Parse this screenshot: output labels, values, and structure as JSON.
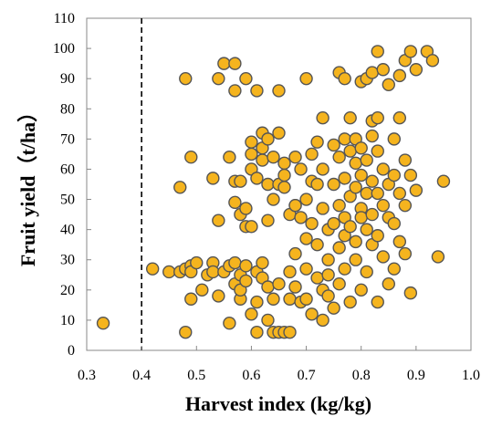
{
  "chart_data": {
    "type": "scatter",
    "xlabel": "Harvest index (kg/kg)",
    "ylabel": "Fruit yield（t/ha）",
    "xlim": [
      0.3,
      1.0
    ],
    "ylim": [
      0,
      110
    ],
    "xticks": [
      "0.3",
      "0.4",
      "0.5",
      "0.6",
      "0.7",
      "0.8",
      "0.9",
      "1.0"
    ],
    "yticks": [
      "0",
      "10",
      "20",
      "30",
      "40",
      "50",
      "60",
      "70",
      "80",
      "90",
      "100",
      "110"
    ],
    "reference_line": {
      "x": 0.4,
      "style": "dashed"
    },
    "grid": false,
    "legend": "none",
    "marker": {
      "fill": "#F5B41E",
      "stroke": "#555555"
    },
    "points": [
      [
        0.33,
        9
      ],
      [
        0.42,
        27
      ],
      [
        0.45,
        26
      ],
      [
        0.47,
        26
      ],
      [
        0.47,
        54
      ],
      [
        0.48,
        6
      ],
      [
        0.48,
        90
      ],
      [
        0.48,
        27
      ],
      [
        0.49,
        28
      ],
      [
        0.49,
        26
      ],
      [
        0.49,
        17
      ],
      [
        0.49,
        64
      ],
      [
        0.5,
        29
      ],
      [
        0.51,
        20
      ],
      [
        0.52,
        25
      ],
      [
        0.53,
        29
      ],
      [
        0.53,
        26
      ],
      [
        0.53,
        57
      ],
      [
        0.54,
        90
      ],
      [
        0.54,
        18
      ],
      [
        0.54,
        43
      ],
      [
        0.55,
        95
      ],
      [
        0.55,
        26
      ],
      [
        0.56,
        64
      ],
      [
        0.56,
        28
      ],
      [
        0.56,
        9
      ],
      [
        0.57,
        95
      ],
      [
        0.57,
        86
      ],
      [
        0.57,
        49
      ],
      [
        0.57,
        56
      ],
      [
        0.57,
        29
      ],
      [
        0.57,
        22
      ],
      [
        0.58,
        17
      ],
      [
        0.58,
        56
      ],
      [
        0.58,
        45
      ],
      [
        0.58,
        25
      ],
      [
        0.58,
        20
      ],
      [
        0.59,
        90
      ],
      [
        0.59,
        41
      ],
      [
        0.59,
        47
      ],
      [
        0.59,
        23
      ],
      [
        0.59,
        28
      ],
      [
        0.6,
        12
      ],
      [
        0.6,
        41
      ],
      [
        0.6,
        60
      ],
      [
        0.6,
        69
      ],
      [
        0.6,
        65
      ],
      [
        0.61,
        86
      ],
      [
        0.61,
        16
      ],
      [
        0.61,
        26
      ],
      [
        0.61,
        57
      ],
      [
        0.61,
        6
      ],
      [
        0.62,
        72
      ],
      [
        0.62,
        67
      ],
      [
        0.62,
        63
      ],
      [
        0.62,
        29
      ],
      [
        0.62,
        24
      ],
      [
        0.63,
        55
      ],
      [
        0.63,
        43
      ],
      [
        0.63,
        10
      ],
      [
        0.63,
        21
      ],
      [
        0.63,
        70
      ],
      [
        0.64,
        6
      ],
      [
        0.64,
        64
      ],
      [
        0.64,
        50
      ],
      [
        0.64,
        17
      ],
      [
        0.65,
        86
      ],
      [
        0.65,
        72
      ],
      [
        0.65,
        55
      ],
      [
        0.65,
        22
      ],
      [
        0.65,
        6
      ],
      [
        0.66,
        58
      ],
      [
        0.66,
        62
      ],
      [
        0.66,
        54
      ],
      [
        0.66,
        6
      ],
      [
        0.67,
        26
      ],
      [
        0.67,
        17
      ],
      [
        0.67,
        6
      ],
      [
        0.67,
        45
      ],
      [
        0.68,
        48
      ],
      [
        0.68,
        32
      ],
      [
        0.68,
        48
      ],
      [
        0.68,
        64
      ],
      [
        0.68,
        21
      ],
      [
        0.69,
        60
      ],
      [
        0.69,
        44
      ],
      [
        0.69,
        16
      ],
      [
        0.7,
        90
      ],
      [
        0.7,
        50
      ],
      [
        0.7,
        37
      ],
      [
        0.7,
        17
      ],
      [
        0.7,
        27
      ],
      [
        0.71,
        56
      ],
      [
        0.71,
        42
      ],
      [
        0.71,
        65
      ],
      [
        0.71,
        12
      ],
      [
        0.72,
        24
      ],
      [
        0.72,
        69
      ],
      [
        0.72,
        35
      ],
      [
        0.72,
        55
      ],
      [
        0.73,
        20
      ],
      [
        0.73,
        77
      ],
      [
        0.73,
        60
      ],
      [
        0.73,
        47
      ],
      [
        0.73,
        10
      ],
      [
        0.74,
        40
      ],
      [
        0.74,
        25
      ],
      [
        0.74,
        18
      ],
      [
        0.74,
        30
      ],
      [
        0.75,
        68
      ],
      [
        0.75,
        55
      ],
      [
        0.75,
        42
      ],
      [
        0.75,
        14
      ],
      [
        0.76,
        92
      ],
      [
        0.76,
        64
      ],
      [
        0.76,
        48
      ],
      [
        0.76,
        34
      ],
      [
        0.76,
        22
      ],
      [
        0.77,
        90
      ],
      [
        0.77,
        70
      ],
      [
        0.77,
        57
      ],
      [
        0.77,
        44
      ],
      [
        0.77,
        38
      ],
      [
        0.77,
        27
      ],
      [
        0.78,
        77
      ],
      [
        0.78,
        66
      ],
      [
        0.78,
        51
      ],
      [
        0.78,
        41
      ],
      [
        0.78,
        16
      ],
      [
        0.79,
        70
      ],
      [
        0.79,
        62
      ],
      [
        0.79,
        54
      ],
      [
        0.79,
        36
      ],
      [
        0.79,
        30
      ],
      [
        0.8,
        89
      ],
      [
        0.8,
        67
      ],
      [
        0.8,
        58
      ],
      [
        0.8,
        47
      ],
      [
        0.8,
        44
      ],
      [
        0.8,
        20
      ],
      [
        0.81,
        90
      ],
      [
        0.81,
        63
      ],
      [
        0.81,
        52
      ],
      [
        0.81,
        40
      ],
      [
        0.81,
        26
      ],
      [
        0.82,
        92
      ],
      [
        0.82,
        76
      ],
      [
        0.82,
        71
      ],
      [
        0.82,
        56
      ],
      [
        0.82,
        45
      ],
      [
        0.82,
        35
      ],
      [
        0.83,
        99
      ],
      [
        0.83,
        77
      ],
      [
        0.83,
        66
      ],
      [
        0.83,
        52
      ],
      [
        0.83,
        38
      ],
      [
        0.83,
        16
      ],
      [
        0.84,
        93
      ],
      [
        0.84,
        60
      ],
      [
        0.84,
        48
      ],
      [
        0.84,
        31
      ],
      [
        0.85,
        88
      ],
      [
        0.85,
        55
      ],
      [
        0.85,
        44
      ],
      [
        0.85,
        22
      ],
      [
        0.86,
        70
      ],
      [
        0.86,
        58
      ],
      [
        0.86,
        42
      ],
      [
        0.86,
        27
      ],
      [
        0.87,
        91
      ],
      [
        0.87,
        77
      ],
      [
        0.87,
        52
      ],
      [
        0.87,
        36
      ],
      [
        0.88,
        96
      ],
      [
        0.88,
        63
      ],
      [
        0.88,
        48
      ],
      [
        0.88,
        32
      ],
      [
        0.89,
        99
      ],
      [
        0.89,
        58
      ],
      [
        0.89,
        19
      ],
      [
        0.9,
        93
      ],
      [
        0.9,
        53
      ],
      [
        0.92,
        99
      ],
      [
        0.93,
        96
      ],
      [
        0.94,
        31
      ],
      [
        0.95,
        56
      ]
    ]
  }
}
